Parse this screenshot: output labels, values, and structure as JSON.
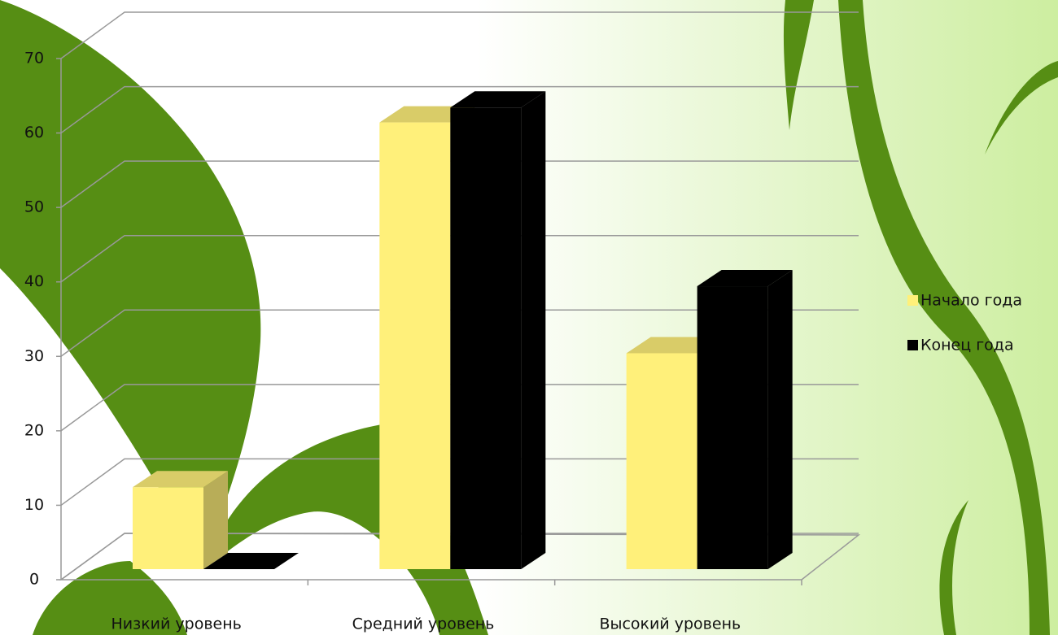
{
  "chart_data": {
    "type": "bar3d",
    "categories": [
      "Низкий уровень",
      "Средний уровень",
      "Высокий уровень"
    ],
    "series": [
      {
        "name": "Начало года",
        "color": "#fff07a",
        "values": [
          11,
          60,
          29
        ]
      },
      {
        "name": "Конец года",
        "color": "#000000",
        "values": [
          0,
          62,
          38
        ]
      }
    ],
    "ylim": [
      0,
      70
    ],
    "yticks": [
      0,
      10,
      20,
      30,
      40,
      50,
      60,
      70
    ],
    "grid": true,
    "legend": "right"
  }
}
